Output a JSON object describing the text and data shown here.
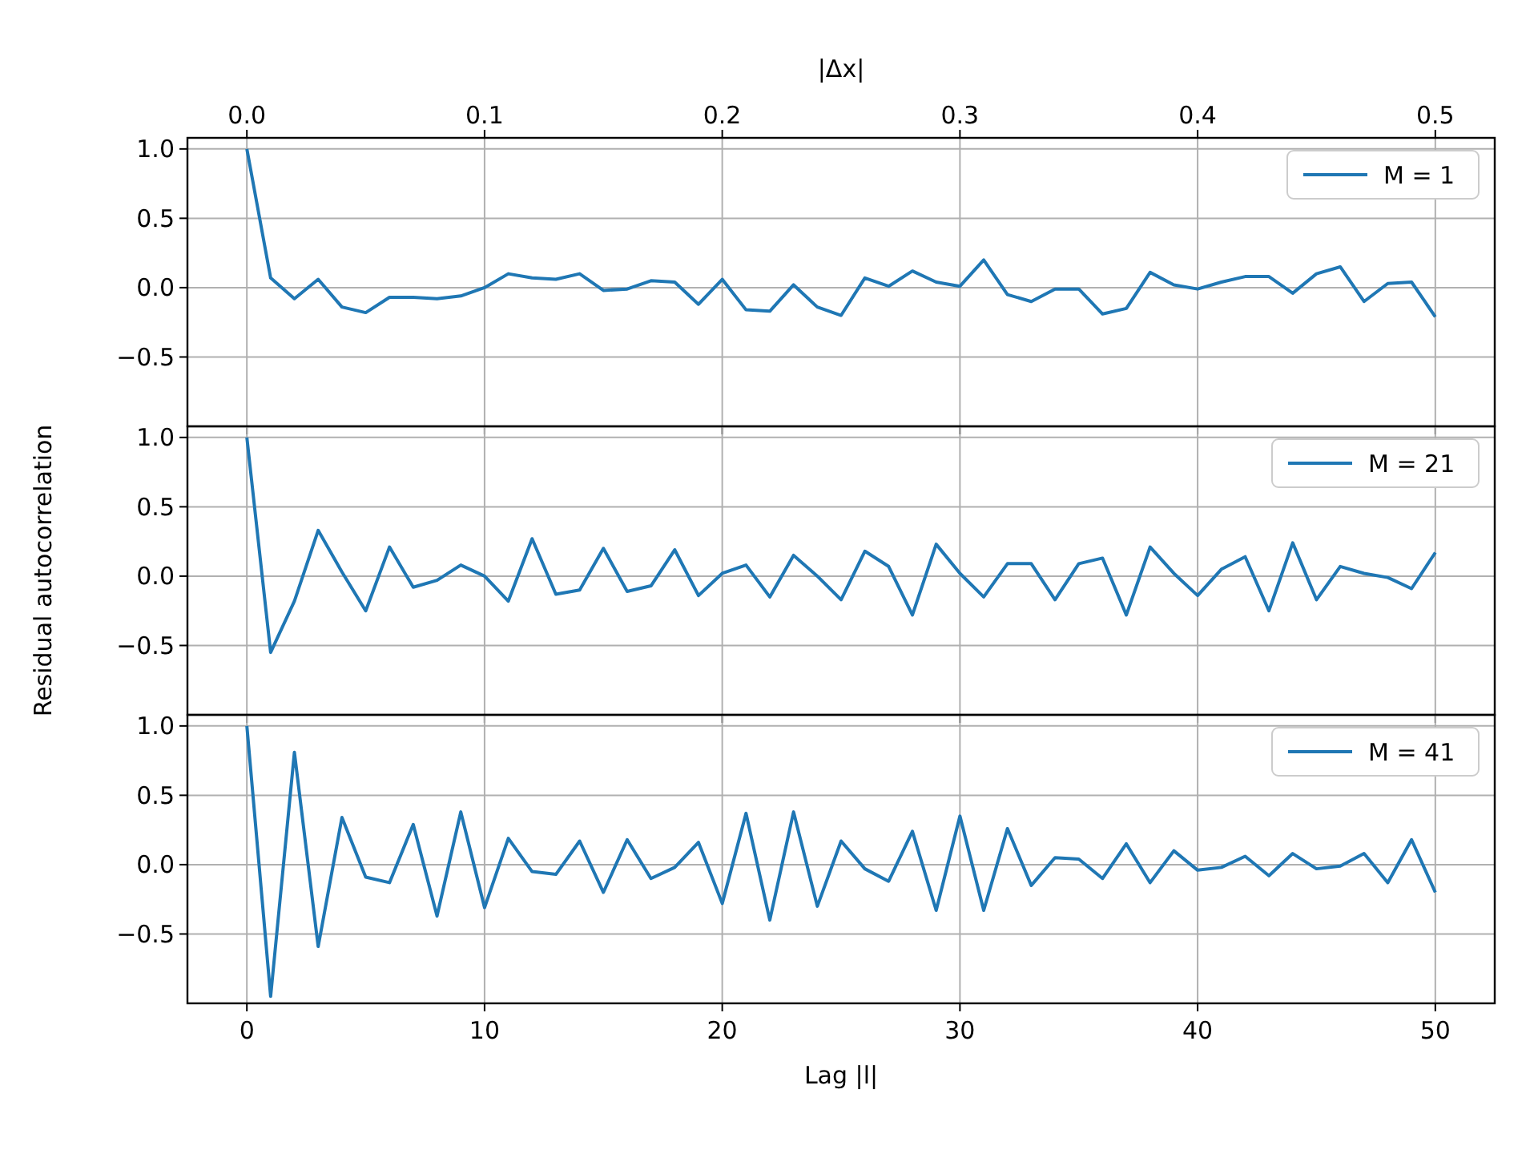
{
  "chart_data": [
    {
      "type": "line",
      "x": [
        0,
        1,
        2,
        3,
        4,
        5,
        6,
        7,
        8,
        9,
        10,
        11,
        12,
        13,
        14,
        15,
        16,
        17,
        18,
        19,
        20,
        21,
        22,
        23,
        24,
        25,
        26,
        27,
        28,
        29,
        30,
        31,
        32,
        33,
        34,
        35,
        36,
        37,
        38,
        39,
        40,
        41,
        42,
        43,
        44,
        45,
        46,
        47,
        48,
        49,
        50
      ],
      "x2label": "|Δx|",
      "xlim": [
        -2.5,
        52.5
      ],
      "xticks": [
        0,
        10,
        20,
        30,
        40,
        50
      ],
      "x2lim": [
        -0.025,
        0.525
      ],
      "x2ticks": [
        {
          "value": 0,
          "label": "0.0"
        },
        {
          "value": 0.1,
          "label": "0.1"
        },
        {
          "value": 0.2,
          "label": "0.2"
        },
        {
          "value": 0.3,
          "label": "0.3"
        },
        {
          "value": 0.4,
          "label": "0.4"
        },
        {
          "value": 0.5,
          "label": "0.5"
        }
      ],
      "ylim": [
        -1.0,
        1.08
      ],
      "yticks": [
        {
          "value": -0.5,
          "label": "−0.5"
        },
        {
          "value": 0,
          "label": "0.0"
        },
        {
          "value": 0.5,
          "label": "0.5"
        },
        {
          "value": 1,
          "label": "1.0"
        }
      ],
      "grid": true,
      "legend": "top right",
      "tick_labels": "y",
      "series": [
        {
          "name": "M = 1",
          "color": "#1f77b4",
          "values": [
            1.0,
            0.07,
            -0.08,
            0.06,
            -0.14,
            -0.18,
            -0.07,
            -0.07,
            -0.08,
            -0.06,
            0.0,
            0.1,
            0.07,
            0.06,
            0.1,
            -0.02,
            -0.01,
            0.05,
            0.04,
            -0.12,
            0.06,
            -0.16,
            -0.17,
            0.02,
            -0.14,
            -0.2,
            0.07,
            0.01,
            0.12,
            0.04,
            0.01,
            0.2,
            -0.05,
            -0.1,
            -0.01,
            -0.01,
            -0.19,
            -0.15,
            0.11,
            0.02,
            -0.01,
            0.04,
            0.08,
            0.08,
            -0.04,
            0.1,
            0.15,
            -0.1,
            0.03,
            0.04,
            -0.21
          ]
        }
      ]
    },
    {
      "type": "line",
      "x": [
        0,
        1,
        2,
        3,
        4,
        5,
        6,
        7,
        8,
        9,
        10,
        11,
        12,
        13,
        14,
        15,
        16,
        17,
        18,
        19,
        20,
        21,
        22,
        23,
        24,
        25,
        26,
        27,
        28,
        29,
        30,
        31,
        32,
        33,
        34,
        35,
        36,
        37,
        38,
        39,
        40,
        41,
        42,
        43,
        44,
        45,
        46,
        47,
        48,
        49,
        50
      ],
      "ylabel": "Residual autocorrelation",
      "xlim": [
        -2.5,
        52.5
      ],
      "xticks": [
        0,
        10,
        20,
        30,
        40,
        50
      ],
      "ylim": [
        -1.0,
        1.08
      ],
      "yticks": [
        {
          "value": -0.5,
          "label": "−0.5"
        },
        {
          "value": 0,
          "label": "0.0"
        },
        0.5,
        {
          "value": 1,
          "label": "1.0"
        }
      ],
      "grid": true,
      "legend": "top right",
      "tick_labels": "y",
      "series": [
        {
          "name": "M = 21",
          "color": "#1f77b4",
          "values": [
            1.0,
            -0.55,
            -0.18,
            0.33,
            0.03,
            -0.25,
            0.21,
            -0.08,
            -0.03,
            0.08,
            0.0,
            -0.18,
            0.27,
            -0.13,
            -0.1,
            0.2,
            -0.11,
            -0.07,
            0.19,
            -0.14,
            0.02,
            0.08,
            -0.15,
            0.15,
            0.0,
            -0.17,
            0.18,
            0.07,
            -0.28,
            0.23,
            0.02,
            -0.15,
            0.09,
            0.09,
            -0.17,
            0.09,
            0.13,
            -0.28,
            0.21,
            0.02,
            -0.14,
            0.05,
            0.14,
            -0.25,
            0.24,
            -0.17,
            0.07,
            0.02,
            -0.01,
            -0.09,
            0.17
          ]
        }
      ]
    },
    {
      "type": "line",
      "x": [
        0,
        1,
        2,
        3,
        4,
        5,
        6,
        7,
        8,
        9,
        10,
        11,
        12,
        13,
        14,
        15,
        16,
        17,
        18,
        19,
        20,
        21,
        22,
        23,
        24,
        25,
        26,
        27,
        28,
        29,
        30,
        31,
        32,
        33,
        34,
        35,
        36,
        37,
        38,
        39,
        40,
        41,
        42,
        43,
        44,
        45,
        46,
        47,
        48,
        49,
        50
      ],
      "xlabel": "Lag |l|",
      "xlim": [
        -2.5,
        52.5
      ],
      "xticks": [
        0,
        10,
        20,
        30,
        40,
        50
      ],
      "ylim": [
        -1.0,
        1.08
      ],
      "yticks": [
        {
          "value": -0.5,
          "label": "−0.5"
        },
        {
          "value": 0,
          "label": "0.0"
        },
        0.5,
        {
          "value": 1,
          "label": "1.0"
        }
      ],
      "grid": true,
      "legend": "top right",
      "series": [
        {
          "name": "M = 41",
          "color": "#1f77b4",
          "values": [
            1.0,
            -0.95,
            0.81,
            -0.59,
            0.34,
            -0.09,
            -0.13,
            0.29,
            -0.37,
            0.38,
            -0.31,
            0.19,
            -0.05,
            -0.07,
            0.17,
            -0.2,
            0.18,
            -0.1,
            -0.02,
            0.16,
            -0.28,
            0.37,
            -0.4,
            0.38,
            -0.3,
            0.17,
            -0.03,
            -0.12,
            0.24,
            -0.33,
            0.35,
            -0.33,
            0.26,
            -0.15,
            0.05,
            0.04,
            -0.1,
            0.15,
            -0.13,
            0.1,
            -0.04,
            -0.02,
            0.06,
            -0.08,
            0.08,
            -0.03,
            -0.01,
            0.08,
            -0.13,
            0.18,
            -0.2
          ]
        }
      ]
    }
  ]
}
